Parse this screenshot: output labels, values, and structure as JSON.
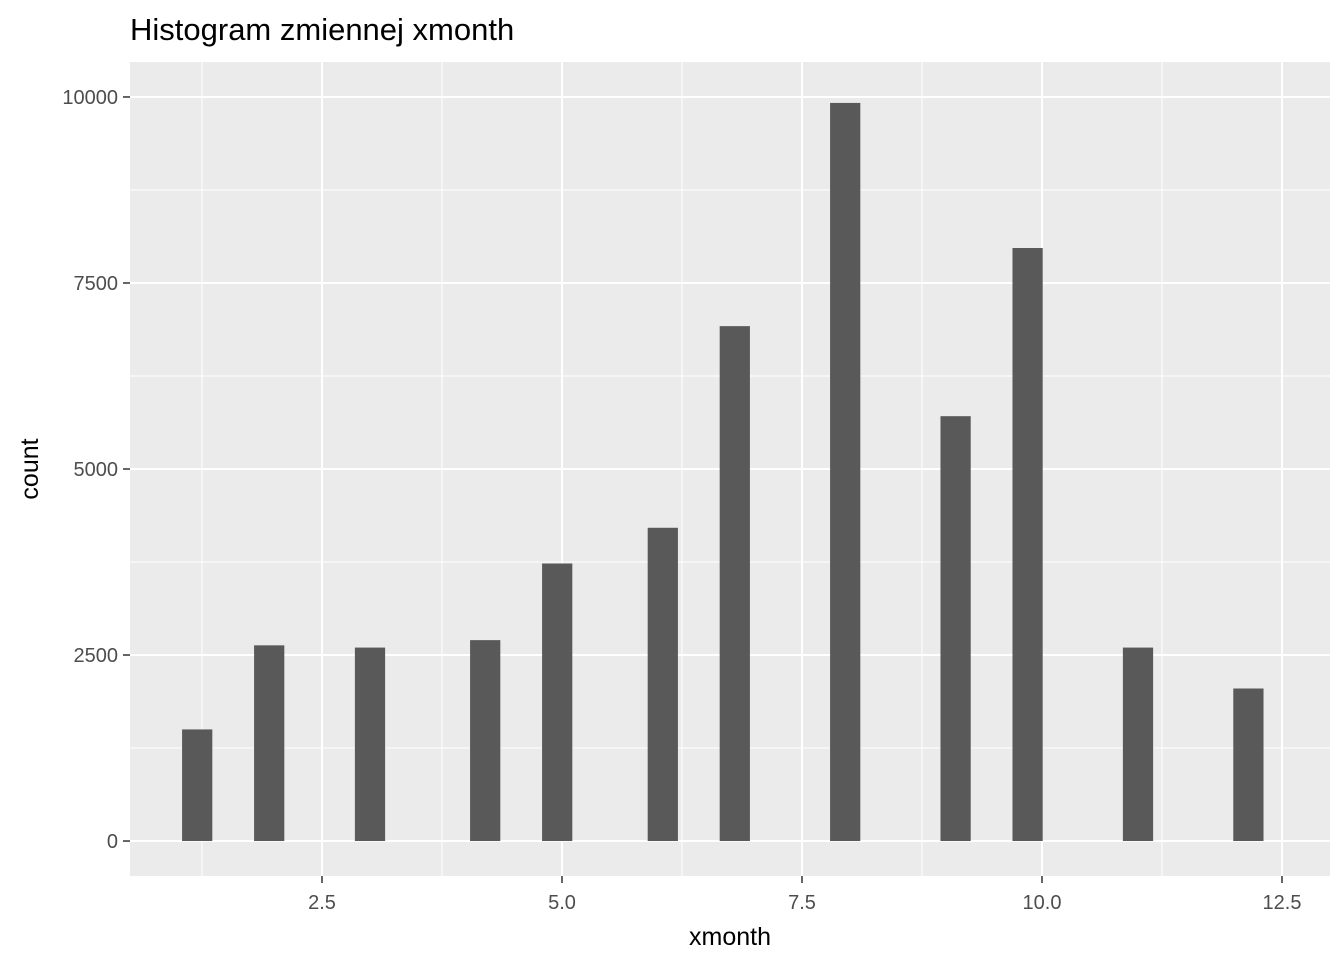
{
  "chart_data": {
    "type": "bar",
    "title": "Histogram zmiennej  xmonth",
    "xlabel": "xmonth",
    "ylabel": "count",
    "x": [
      1.2,
      1.95,
      3.0,
      4.2,
      4.95,
      6.05,
      6.8,
      7.95,
      9.1,
      9.85,
      11.0,
      12.15
    ],
    "values": [
      1500,
      2630,
      2600,
      2700,
      3730,
      4210,
      6920,
      9920,
      5710,
      7970,
      2600,
      2050
    ],
    "xlim": [
      0.5,
      13.0
    ],
    "ylim": [
      -470,
      10470
    ],
    "x_ticks": [
      2.5,
      5.0,
      7.5,
      10.0,
      12.5
    ],
    "x_tick_labels": [
      "2.5",
      "5.0",
      "7.5",
      "10.0",
      "12.5"
    ],
    "y_ticks": [
      0,
      2500,
      5000,
      7500,
      10000
    ],
    "y_tick_labels": [
      "0",
      "2500",
      "5000",
      "7500",
      "10000"
    ],
    "grid": true,
    "bar_color": "#595959",
    "panel_background": "#ebebeb",
    "grid_color": "#ffffff"
  }
}
